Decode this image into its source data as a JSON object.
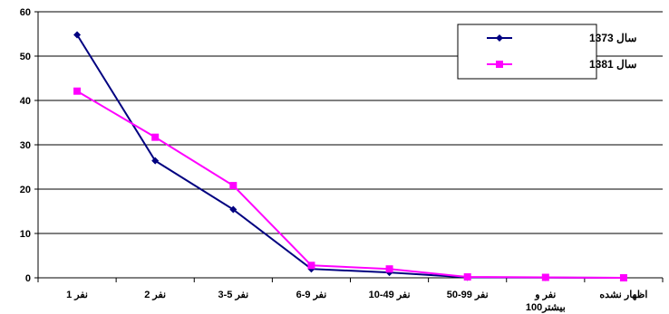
{
  "chart_data": {
    "type": "line",
    "title": "",
    "xlabel": "",
    "ylabel": "",
    "ylim": [
      0,
      60
    ],
    "yticks": [
      "0",
      "10",
      "20",
      "30",
      "40",
      "50",
      "60"
    ],
    "categories": [
      [
        "نفر 1"
      ],
      [
        "نفر 2"
      ],
      [
        "نفر 5-3"
      ],
      [
        "نفر 9-6"
      ],
      [
        "نفر 49-10"
      ],
      [
        "نفر 99-50"
      ],
      [
        "نفر و",
        "بیشتر100"
      ],
      [
        "اظهار نشده"
      ]
    ],
    "series": [
      {
        "name": "سال 1373",
        "color": "#000080",
        "marker": "diamond",
        "values": [
          54.8,
          26.4,
          15.4,
          2.0,
          1.2,
          0.1,
          0.05,
          0.0
        ]
      },
      {
        "name": "سال 1381",
        "color": "#ff00ff",
        "marker": "square",
        "values": [
          42.1,
          31.7,
          20.8,
          2.8,
          2.0,
          0.2,
          0.1,
          0.0
        ]
      }
    ],
    "grid": true,
    "legend_position": "top-right"
  }
}
